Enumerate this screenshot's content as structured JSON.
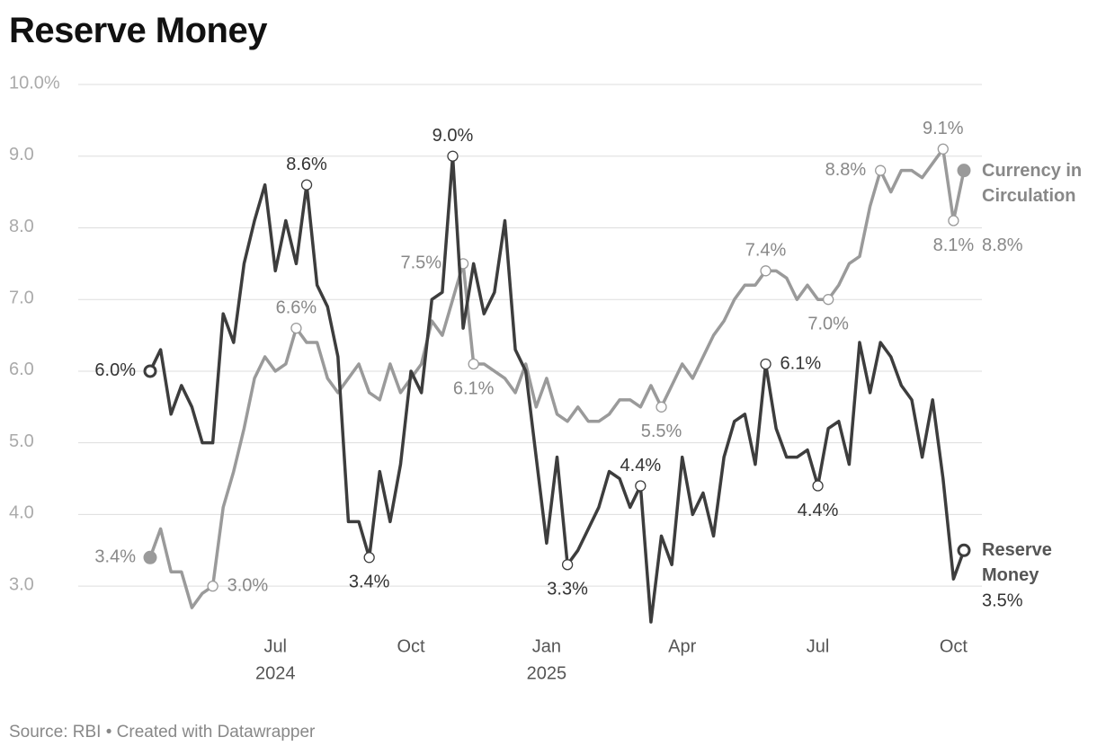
{
  "chart_data": {
    "type": "line",
    "title": "Reserve Money",
    "source": "Source: RBI • Created with Datawrapper",
    "categories": [
      null,
      null,
      null,
      null,
      null,
      null,
      null,
      null,
      null,
      null,
      null,
      null,
      "Jul",
      null,
      null,
      null,
      null,
      null,
      null,
      null,
      null,
      null,
      null,
      null,
      null,
      "Oct",
      null,
      null,
      null,
      null,
      null,
      null,
      null,
      null,
      null,
      null,
      null,
      null,
      "Jan",
      null,
      null,
      null,
      null,
      null,
      null,
      null,
      null,
      null,
      null,
      null,
      null,
      "Apr",
      null,
      null,
      null,
      null,
      null,
      null,
      null,
      null,
      null,
      null,
      null,
      null,
      "Jul",
      null,
      null,
      null,
      null,
      null,
      null,
      null,
      null,
      null,
      null,
      null,
      null,
      "Oct",
      null
    ],
    "category_years": [
      null,
      null,
      null,
      null,
      null,
      null,
      null,
      null,
      null,
      null,
      null,
      null,
      "2024",
      null,
      null,
      null,
      null,
      null,
      null,
      null,
      null,
      null,
      null,
      null,
      null,
      null,
      null,
      null,
      null,
      null,
      null,
      null,
      null,
      null,
      null,
      null,
      null,
      null,
      "2025",
      null,
      null,
      null,
      null,
      null,
      null,
      null,
      null,
      null,
      null,
      null,
      null,
      null,
      null,
      null,
      null,
      null,
      null,
      null,
      null,
      null,
      null,
      null,
      null,
      null,
      null,
      null,
      null,
      null,
      null,
      null,
      null,
      null,
      null,
      null,
      null,
      null,
      null,
      null,
      null
    ],
    "series": [
      {
        "name": "Reserve Money",
        "color": "#3d3d3d",
        "values": [
          6.0,
          6.3,
          5.4,
          5.8,
          5.5,
          5.0,
          5.0,
          6.8,
          6.4,
          7.5,
          8.1,
          8.6,
          7.4,
          8.1,
          7.5,
          8.6,
          7.2,
          6.9,
          6.2,
          3.9,
          3.9,
          3.4,
          4.6,
          3.9,
          4.7,
          6.0,
          5.7,
          7.0,
          7.1,
          9.0,
          6.6,
          7.5,
          6.8,
          7.1,
          8.1,
          6.3,
          6.0,
          4.8,
          3.6,
          4.8,
          3.3,
          3.5,
          3.8,
          4.1,
          4.6,
          4.5,
          4.1,
          4.4,
          2.5,
          3.7,
          3.3,
          4.8,
          4.0,
          4.3,
          3.7,
          4.8,
          5.3,
          5.4,
          4.7,
          6.1,
          5.2,
          4.8,
          4.8,
          4.9,
          4.4,
          5.2,
          5.3,
          4.7,
          6.4,
          5.7,
          6.4,
          6.2,
          5.8,
          5.6,
          4.8,
          5.6,
          4.5,
          3.1,
          3.5
        ],
        "value_labels": [
          "6.0%",
          null,
          null,
          null,
          null,
          null,
          null,
          null,
          null,
          null,
          null,
          null,
          null,
          null,
          null,
          "8.6%",
          null,
          null,
          null,
          null,
          null,
          "3.4%",
          null,
          null,
          null,
          null,
          null,
          null,
          null,
          "9.0%",
          null,
          null,
          null,
          null,
          null,
          null,
          null,
          null,
          null,
          null,
          "3.3%",
          null,
          null,
          null,
          null,
          null,
          null,
          "4.4%",
          null,
          null,
          null,
          null,
          null,
          null,
          null,
          null,
          null,
          null,
          null,
          "6.1%",
          null,
          null,
          null,
          null,
          "4.4%",
          null,
          null,
          null,
          null,
          null,
          null,
          null,
          null,
          null,
          null,
          null,
          null,
          null,
          "3.5%"
        ]
      },
      {
        "name": "Currency in Circulation",
        "color": "#9a9a9a",
        "values": [
          3.4,
          3.8,
          3.2,
          3.2,
          2.7,
          2.9,
          3.0,
          4.1,
          4.6,
          5.2,
          5.9,
          6.2,
          6.0,
          6.1,
          6.6,
          6.4,
          6.4,
          5.9,
          5.7,
          5.9,
          6.1,
          5.7,
          5.6,
          6.1,
          5.7,
          5.9,
          6.1,
          6.7,
          6.5,
          7.0,
          7.5,
          6.1,
          6.1,
          6.0,
          5.9,
          5.7,
          6.1,
          5.5,
          5.9,
          5.4,
          5.3,
          5.5,
          5.3,
          5.3,
          5.4,
          5.6,
          5.6,
          5.5,
          5.8,
          5.5,
          5.8,
          6.1,
          5.9,
          6.2,
          6.5,
          6.7,
          7.0,
          7.2,
          7.2,
          7.4,
          7.4,
          7.3,
          7.0,
          7.2,
          7.0,
          7.0,
          7.2,
          7.5,
          7.6,
          8.3,
          8.8,
          8.5,
          8.8,
          8.8,
          8.7,
          8.9,
          9.1,
          8.1,
          8.8
        ],
        "value_labels": [
          "3.4%",
          null,
          null,
          null,
          null,
          null,
          "3.0%",
          null,
          null,
          null,
          null,
          null,
          null,
          null,
          "6.6%",
          null,
          null,
          null,
          null,
          null,
          null,
          null,
          null,
          null,
          null,
          null,
          null,
          null,
          null,
          null,
          "7.5%",
          "6.1%",
          null,
          null,
          null,
          null,
          null,
          null,
          null,
          null,
          null,
          null,
          null,
          null,
          null,
          null,
          null,
          null,
          null,
          "5.5%",
          null,
          null,
          null,
          null,
          null,
          null,
          null,
          null,
          null,
          "7.4%",
          null,
          null,
          null,
          null,
          null,
          "7.0%",
          null,
          null,
          null,
          null,
          "8.8%",
          null,
          null,
          null,
          null,
          null,
          "9.1%",
          "8.1%",
          "8.8%"
        ]
      }
    ],
    "ylim": [
      2.4,
      10
    ],
    "yticks": [
      {
        "value": 3,
        "label": "3.0"
      },
      {
        "value": 4,
        "label": "4.0"
      },
      {
        "value": 5,
        "label": "5.0"
      },
      {
        "value": 6,
        "label": "6.0"
      },
      {
        "value": 7,
        "label": "7.0"
      },
      {
        "value": 8,
        "label": "8.0"
      },
      {
        "value": 9,
        "label": "9.0"
      },
      {
        "value": 10,
        "label": "10.0%"
      }
    ],
    "grid": true
  }
}
